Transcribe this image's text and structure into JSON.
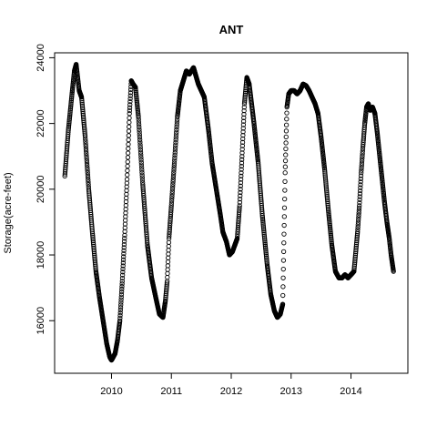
{
  "chart_data": {
    "type": "scatter",
    "title": "ANT",
    "xlabel": "",
    "ylabel": "Storage(acre-feet)",
    "xlim": [
      2009.05,
      2014.95
    ],
    "ylim": [
      14400,
      24150
    ],
    "x_ticks": [
      2010,
      2011,
      2012,
      2013,
      2014
    ],
    "x_tick_labels": [
      "2010",
      "2011",
      "2012",
      "2013",
      "2014"
    ],
    "y_ticks": [
      16000,
      18000,
      20000,
      22000,
      24000
    ],
    "y_tick_labels": [
      "16000",
      "18000",
      "20000",
      "22000",
      "24000"
    ],
    "grid": false,
    "legend": "none",
    "marker": "open-circle",
    "point_spacing_days": 1,
    "series": [
      {
        "x": [
          2009.22,
          2009.28,
          2009.34,
          2009.38,
          2009.41,
          2009.46,
          2009.5,
          2009.56,
          2009.62,
          2009.68,
          2009.74,
          2009.8,
          2009.86,
          2009.92,
          2009.97,
          2010.0,
          2010.03,
          2010.06,
          2010.1,
          2010.14,
          2010.18,
          2010.22,
          2010.26,
          2010.3,
          2010.33,
          2010.36,
          2010.4,
          2010.45,
          2010.52,
          2010.6,
          2010.67,
          2010.74,
          2010.8,
          2010.86,
          2010.9,
          2010.93,
          2010.96,
          2011.0,
          2011.05,
          2011.1,
          2011.15,
          2011.2,
          2011.25,
          2011.3,
          2011.37,
          2011.45,
          2011.55,
          2011.62,
          2011.68,
          2011.75,
          2011.82,
          2011.86,
          2011.92,
          2011.97,
          2012.02,
          2012.06,
          2012.1,
          2012.14,
          2012.18,
          2012.22,
          2012.26,
          2012.3,
          2012.34,
          2012.38,
          2012.45,
          2012.52,
          2012.6,
          2012.66,
          2012.72,
          2012.77,
          2012.82,
          2012.86,
          2012.9,
          2012.93,
          2012.96,
          2013.0,
          2013.05,
          2013.1,
          2013.15,
          2013.2,
          2013.25,
          2013.3,
          2013.35,
          2013.4,
          2013.45,
          2013.5,
          2013.56,
          2013.62,
          2013.68,
          2013.74,
          2013.8,
          2013.85,
          2013.9,
          2013.95,
          2014.0,
          2014.05,
          2014.08,
          2014.11,
          2014.14,
          2014.17,
          2014.2,
          2014.23,
          2014.26,
          2014.29,
          2014.32,
          2014.36,
          2014.4,
          2014.44,
          2014.48,
          2014.52,
          2014.56,
          2014.6,
          2014.64,
          2014.67,
          2014.71
        ],
        "y": [
          20400,
          21800,
          22900,
          23600,
          23800,
          23000,
          22800,
          21600,
          20000,
          18700,
          17500,
          16700,
          16000,
          15300,
          14900,
          14800,
          14900,
          15000,
          15400,
          16000,
          17200,
          18600,
          20300,
          22300,
          23300,
          23200,
          23100,
          22200,
          20200,
          18300,
          17300,
          16700,
          16200,
          16100,
          16600,
          17200,
          18500,
          19500,
          20800,
          22200,
          23000,
          23300,
          23600,
          23500,
          23700,
          23200,
          22800,
          21800,
          20800,
          20000,
          19200,
          18700,
          18400,
          18000,
          18100,
          18300,
          18500,
          19500,
          21000,
          22600,
          23400,
          23200,
          22600,
          22000,
          20800,
          19200,
          17700,
          16800,
          16300,
          16100,
          16200,
          16500,
          20500,
          22500,
          22900,
          23000,
          23000,
          22900,
          23000,
          23200,
          23150,
          23000,
          22800,
          22600,
          22300,
          21600,
          20600,
          19400,
          18300,
          17500,
          17300,
          17300,
          17400,
          17300,
          17400,
          17500,
          18100,
          18700,
          19500,
          20500,
          21300,
          22000,
          22500,
          22600,
          22400,
          22500,
          22300,
          21700,
          21000,
          20300,
          19600,
          19000,
          18500,
          18000,
          17500
        ]
      }
    ]
  }
}
